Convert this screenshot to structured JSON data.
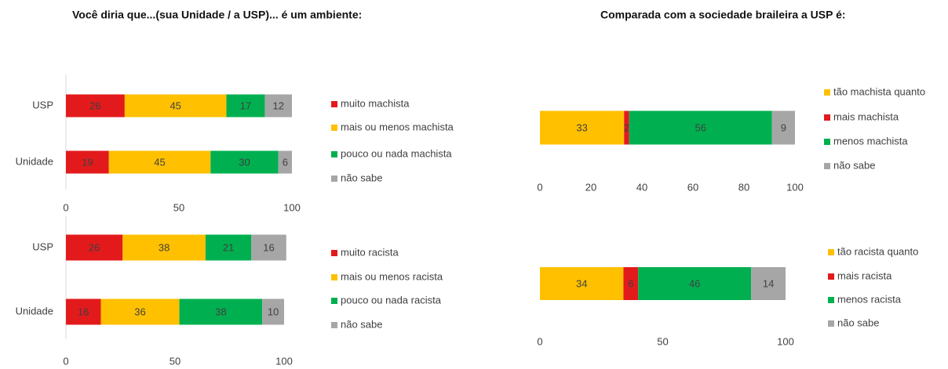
{
  "chart_data": [
    {
      "type": "stacked-bar",
      "orientation": "horizontal",
      "title": "Você diria que...(sua Unidade / a USP)... é um ambiente:",
      "categories": [
        "USP",
        "Unidade"
      ],
      "xlim": [
        0,
        100
      ],
      "xticks": [
        0,
        50,
        100
      ],
      "series": [
        {
          "name": "muito machista",
          "color": "#e31a1c",
          "values": [
            26,
            19
          ]
        },
        {
          "name": "mais ou menos machista",
          "color": "#ffc000",
          "values": [
            45,
            45
          ]
        },
        {
          "name": "pouco ou nada machista",
          "color": "#00b050",
          "values": [
            17,
            30
          ]
        },
        {
          "name": "não sabe",
          "color": "#a6a6a6",
          "values": [
            12,
            6
          ]
        }
      ]
    },
    {
      "type": "stacked-bar",
      "orientation": "horizontal",
      "title": "Comparada com a sociedade braileira a USP é:",
      "categories": [
        null
      ],
      "xlim": [
        0,
        100
      ],
      "xticks": [
        0,
        20,
        40,
        60,
        80,
        100
      ],
      "series": [
        {
          "name": "tão machista quanto",
          "color": "#ffc000",
          "values": [
            33
          ]
        },
        {
          "name": "mais machista",
          "color": "#e31a1c",
          "values": [
            2
          ]
        },
        {
          "name": "menos machista",
          "color": "#00b050",
          "values": [
            56
          ]
        },
        {
          "name": "não sabe",
          "color": "#a6a6a6",
          "values": [
            9
          ]
        }
      ]
    },
    {
      "type": "stacked-bar",
      "orientation": "horizontal",
      "categories": [
        "USP",
        "Unidade"
      ],
      "xlim": [
        0,
        100
      ],
      "xticks": [
        0,
        50,
        100
      ],
      "series": [
        {
          "name": "muito racista",
          "color": "#e31a1c",
          "values": [
            26,
            16
          ]
        },
        {
          "name": "mais ou menos racista",
          "color": "#ffc000",
          "values": [
            38,
            36
          ]
        },
        {
          "name": "pouco ou nada racista",
          "color": "#00b050",
          "values": [
            21,
            38
          ]
        },
        {
          "name": "não sabe",
          "color": "#a6a6a6",
          "values": [
            16,
            10
          ]
        }
      ]
    },
    {
      "type": "stacked-bar",
      "orientation": "horizontal",
      "categories": [
        null
      ],
      "xlim": [
        0,
        100
      ],
      "xticks": [
        0,
        50,
        100
      ],
      "series": [
        {
          "name": "tão racista quanto",
          "color": "#ffc000",
          "values": [
            34
          ]
        },
        {
          "name": "mais racista",
          "color": "#e31a1c",
          "values": [
            6
          ]
        },
        {
          "name": "menos racista",
          "color": "#00b050",
          "values": [
            46
          ]
        },
        {
          "name": "não sabe",
          "color": "#a6a6a6",
          "values": [
            14
          ]
        }
      ]
    }
  ]
}
